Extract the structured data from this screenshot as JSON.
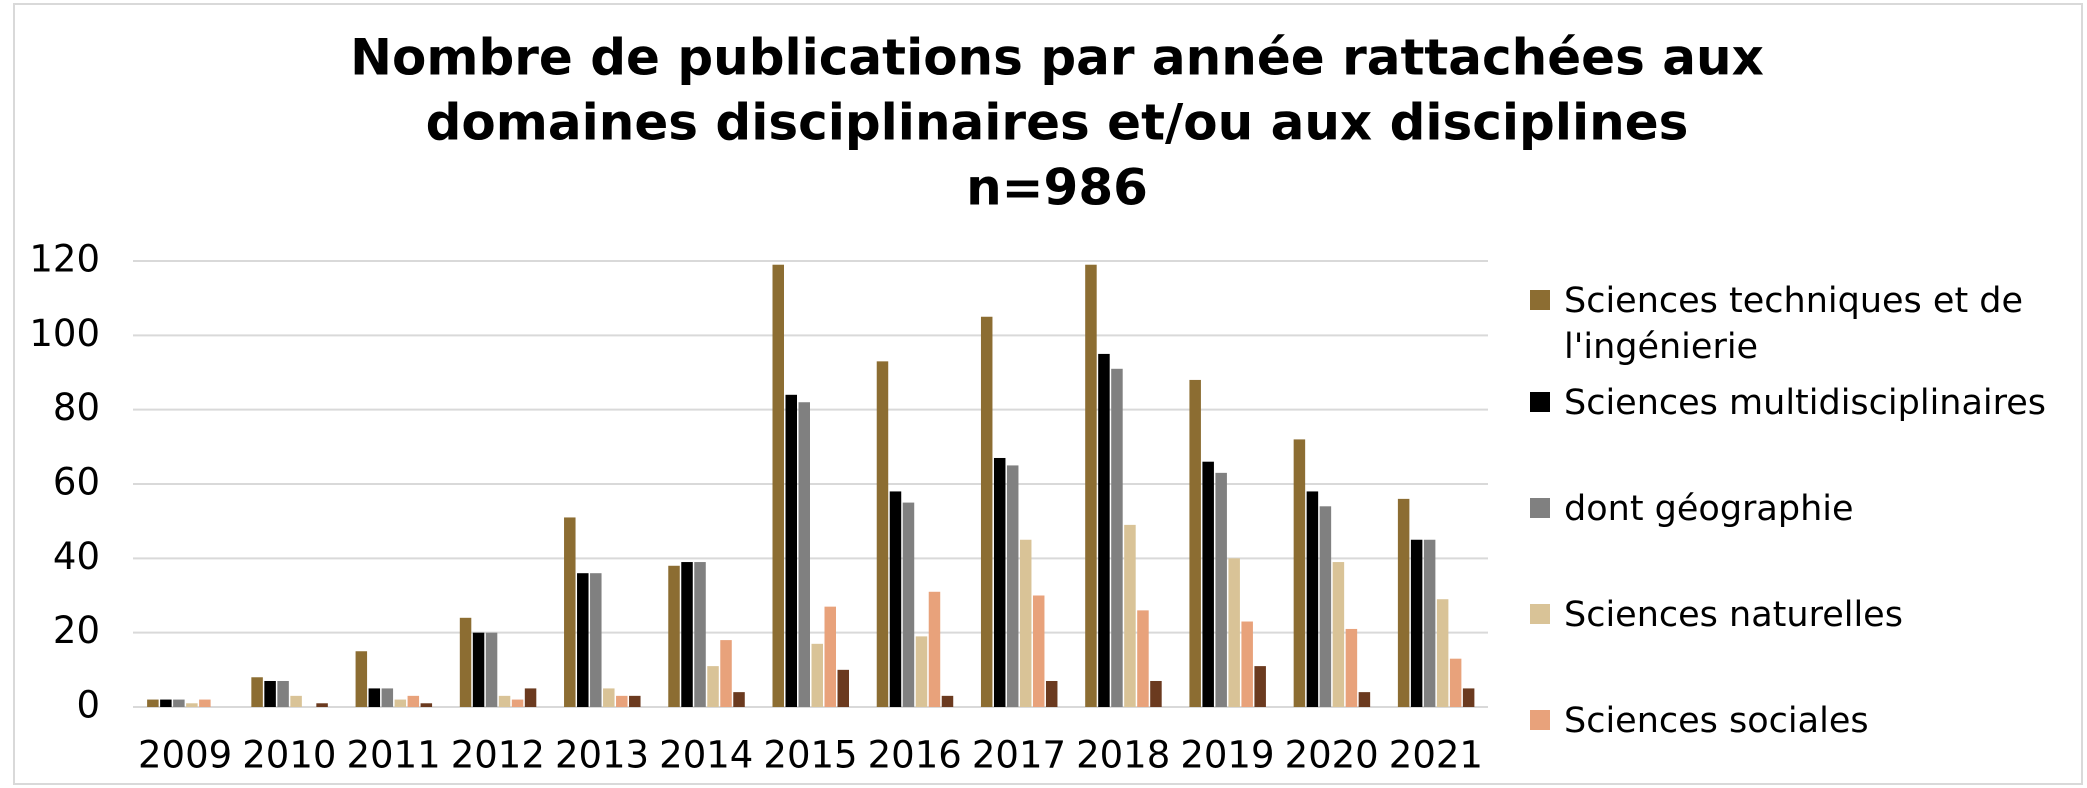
{
  "chart_data": {
    "type": "bar",
    "title": [
      "Nombre de publications par année rattachées aux",
      "domaines disciplinaires et/ou aux disciplines"
    ],
    "subtitle": "n=986",
    "categories": [
      "2009",
      "2010",
      "2011",
      "2012",
      "2013",
      "2014",
      "2015",
      "2016",
      "2017",
      "2018",
      "2019",
      "2020",
      "2021"
    ],
    "series": [
      {
        "name": "Sciences techniques et de l'ingénierie",
        "color": "#8c6d32",
        "values": [
          2,
          8,
          15,
          24,
          51,
          38,
          119,
          93,
          105,
          119,
          88,
          72,
          56
        ]
      },
      {
        "name": "Sciences multidisciplinaires",
        "color": "#000000",
        "values": [
          2,
          7,
          5,
          20,
          36,
          39,
          84,
          58,
          67,
          95,
          66,
          58,
          45
        ]
      },
      {
        "name": "dont géographie",
        "color": "#808080",
        "values": [
          2,
          7,
          5,
          20,
          36,
          39,
          82,
          55,
          65,
          91,
          63,
          54,
          45
        ]
      },
      {
        "name": "Sciences naturelles",
        "color": "#d9c397",
        "values": [
          1,
          3,
          2,
          3,
          5,
          11,
          17,
          19,
          45,
          49,
          40,
          39,
          29
        ]
      },
      {
        "name": "Sciences sociales",
        "color": "#e8a27b",
        "values": [
          2,
          0,
          3,
          2,
          3,
          18,
          27,
          31,
          30,
          26,
          23,
          21,
          13
        ]
      },
      {
        "color": "#6b3a1f",
        "values": [
          0,
          1,
          1,
          5,
          3,
          4,
          10,
          3,
          7,
          7,
          11,
          4,
          5
        ]
      }
    ],
    "ylim": [
      0,
      120
    ],
    "yticks": [
      0,
      20,
      40,
      60,
      80,
      100,
      120
    ],
    "grid": true,
    "legend": "right"
  }
}
